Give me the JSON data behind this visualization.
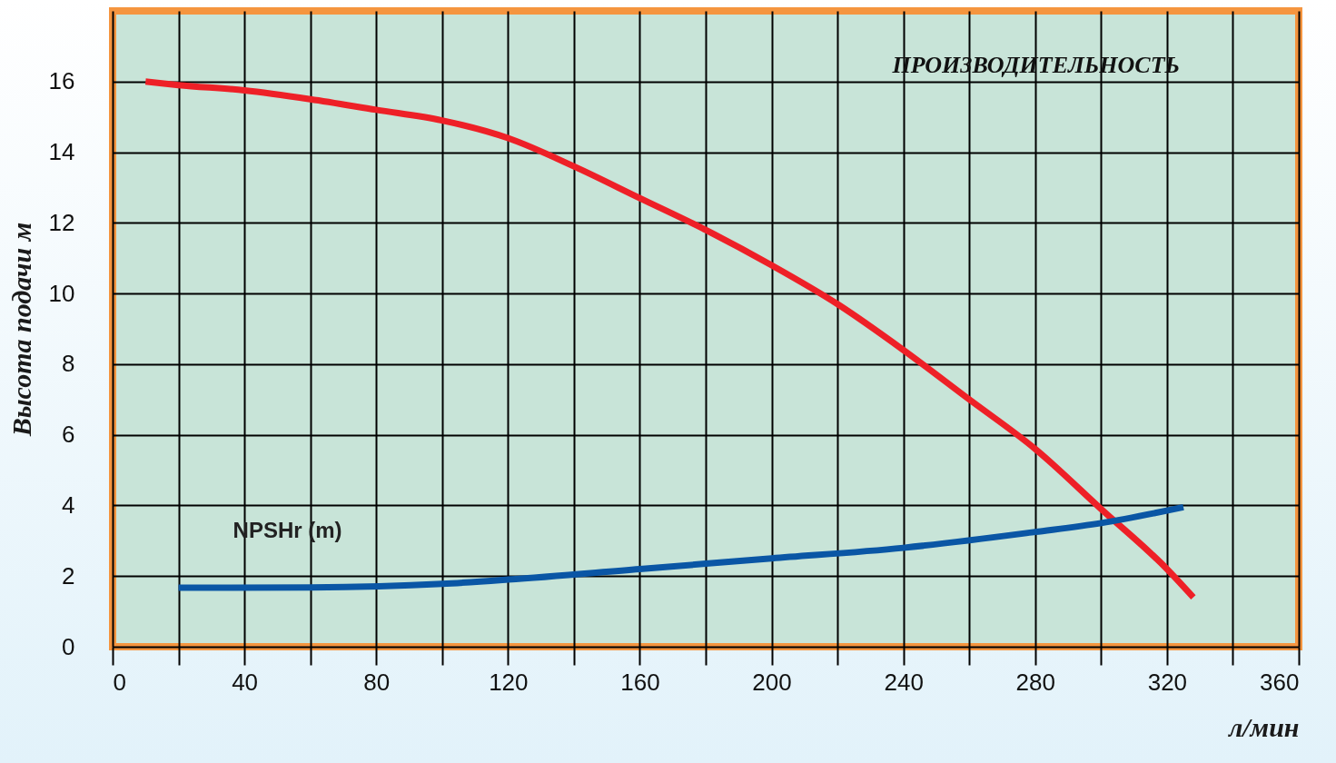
{
  "chart_data": {
    "type": "line",
    "xlabel": "л/мин",
    "ylabel": "Высота подачи м",
    "annotations": [
      "ПРОИЗВОДИТЕЛЬНОСТЬ"
    ],
    "xlim": [
      0,
      360
    ],
    "ylim": [
      0,
      18
    ],
    "xticks": [
      0,
      {
        "value": 20,
        "label": null
      },
      40,
      {
        "value": 60,
        "label": null
      },
      80,
      {
        "value": 100,
        "label": null
      },
      120,
      {
        "value": 140,
        "label": null
      },
      160,
      {
        "value": 180,
        "label": null
      },
      200,
      {
        "value": 220,
        "label": null
      },
      240,
      {
        "value": 260,
        "label": null
      },
      280,
      {
        "value": 300,
        "label": null
      },
      320,
      {
        "value": 340,
        "label": null
      },
      360
    ],
    "yticks": [
      0,
      2,
      4,
      6,
      8,
      10,
      12,
      14,
      16
    ],
    "grid": true,
    "marker": "none",
    "line_style": "solid",
    "series": [
      {
        "color": "#ee2027",
        "x": [
          10,
          20,
          40,
          60,
          80,
          100,
          120,
          140,
          160,
          180,
          200,
          220,
          240,
          260,
          280,
          300,
          320,
          328
        ],
        "values": [
          16,
          15.9,
          15.75,
          15.5,
          15.2,
          14.9,
          14.4,
          13.6,
          12.7,
          11.8,
          10.8,
          9.7,
          8.4,
          7.0,
          5.6,
          3.9,
          2.2,
          1.4
        ]
      },
      {
        "name": "NPSHr (m)",
        "color": "#0a56a5",
        "x": [
          20,
          60,
          100,
          120,
          160,
          200,
          240,
          280,
          300,
          325
        ],
        "values": [
          1.67,
          1.68,
          1.78,
          1.9,
          2.2,
          2.5,
          2.8,
          3.25,
          3.5,
          3.95
        ]
      }
    ]
  }
}
